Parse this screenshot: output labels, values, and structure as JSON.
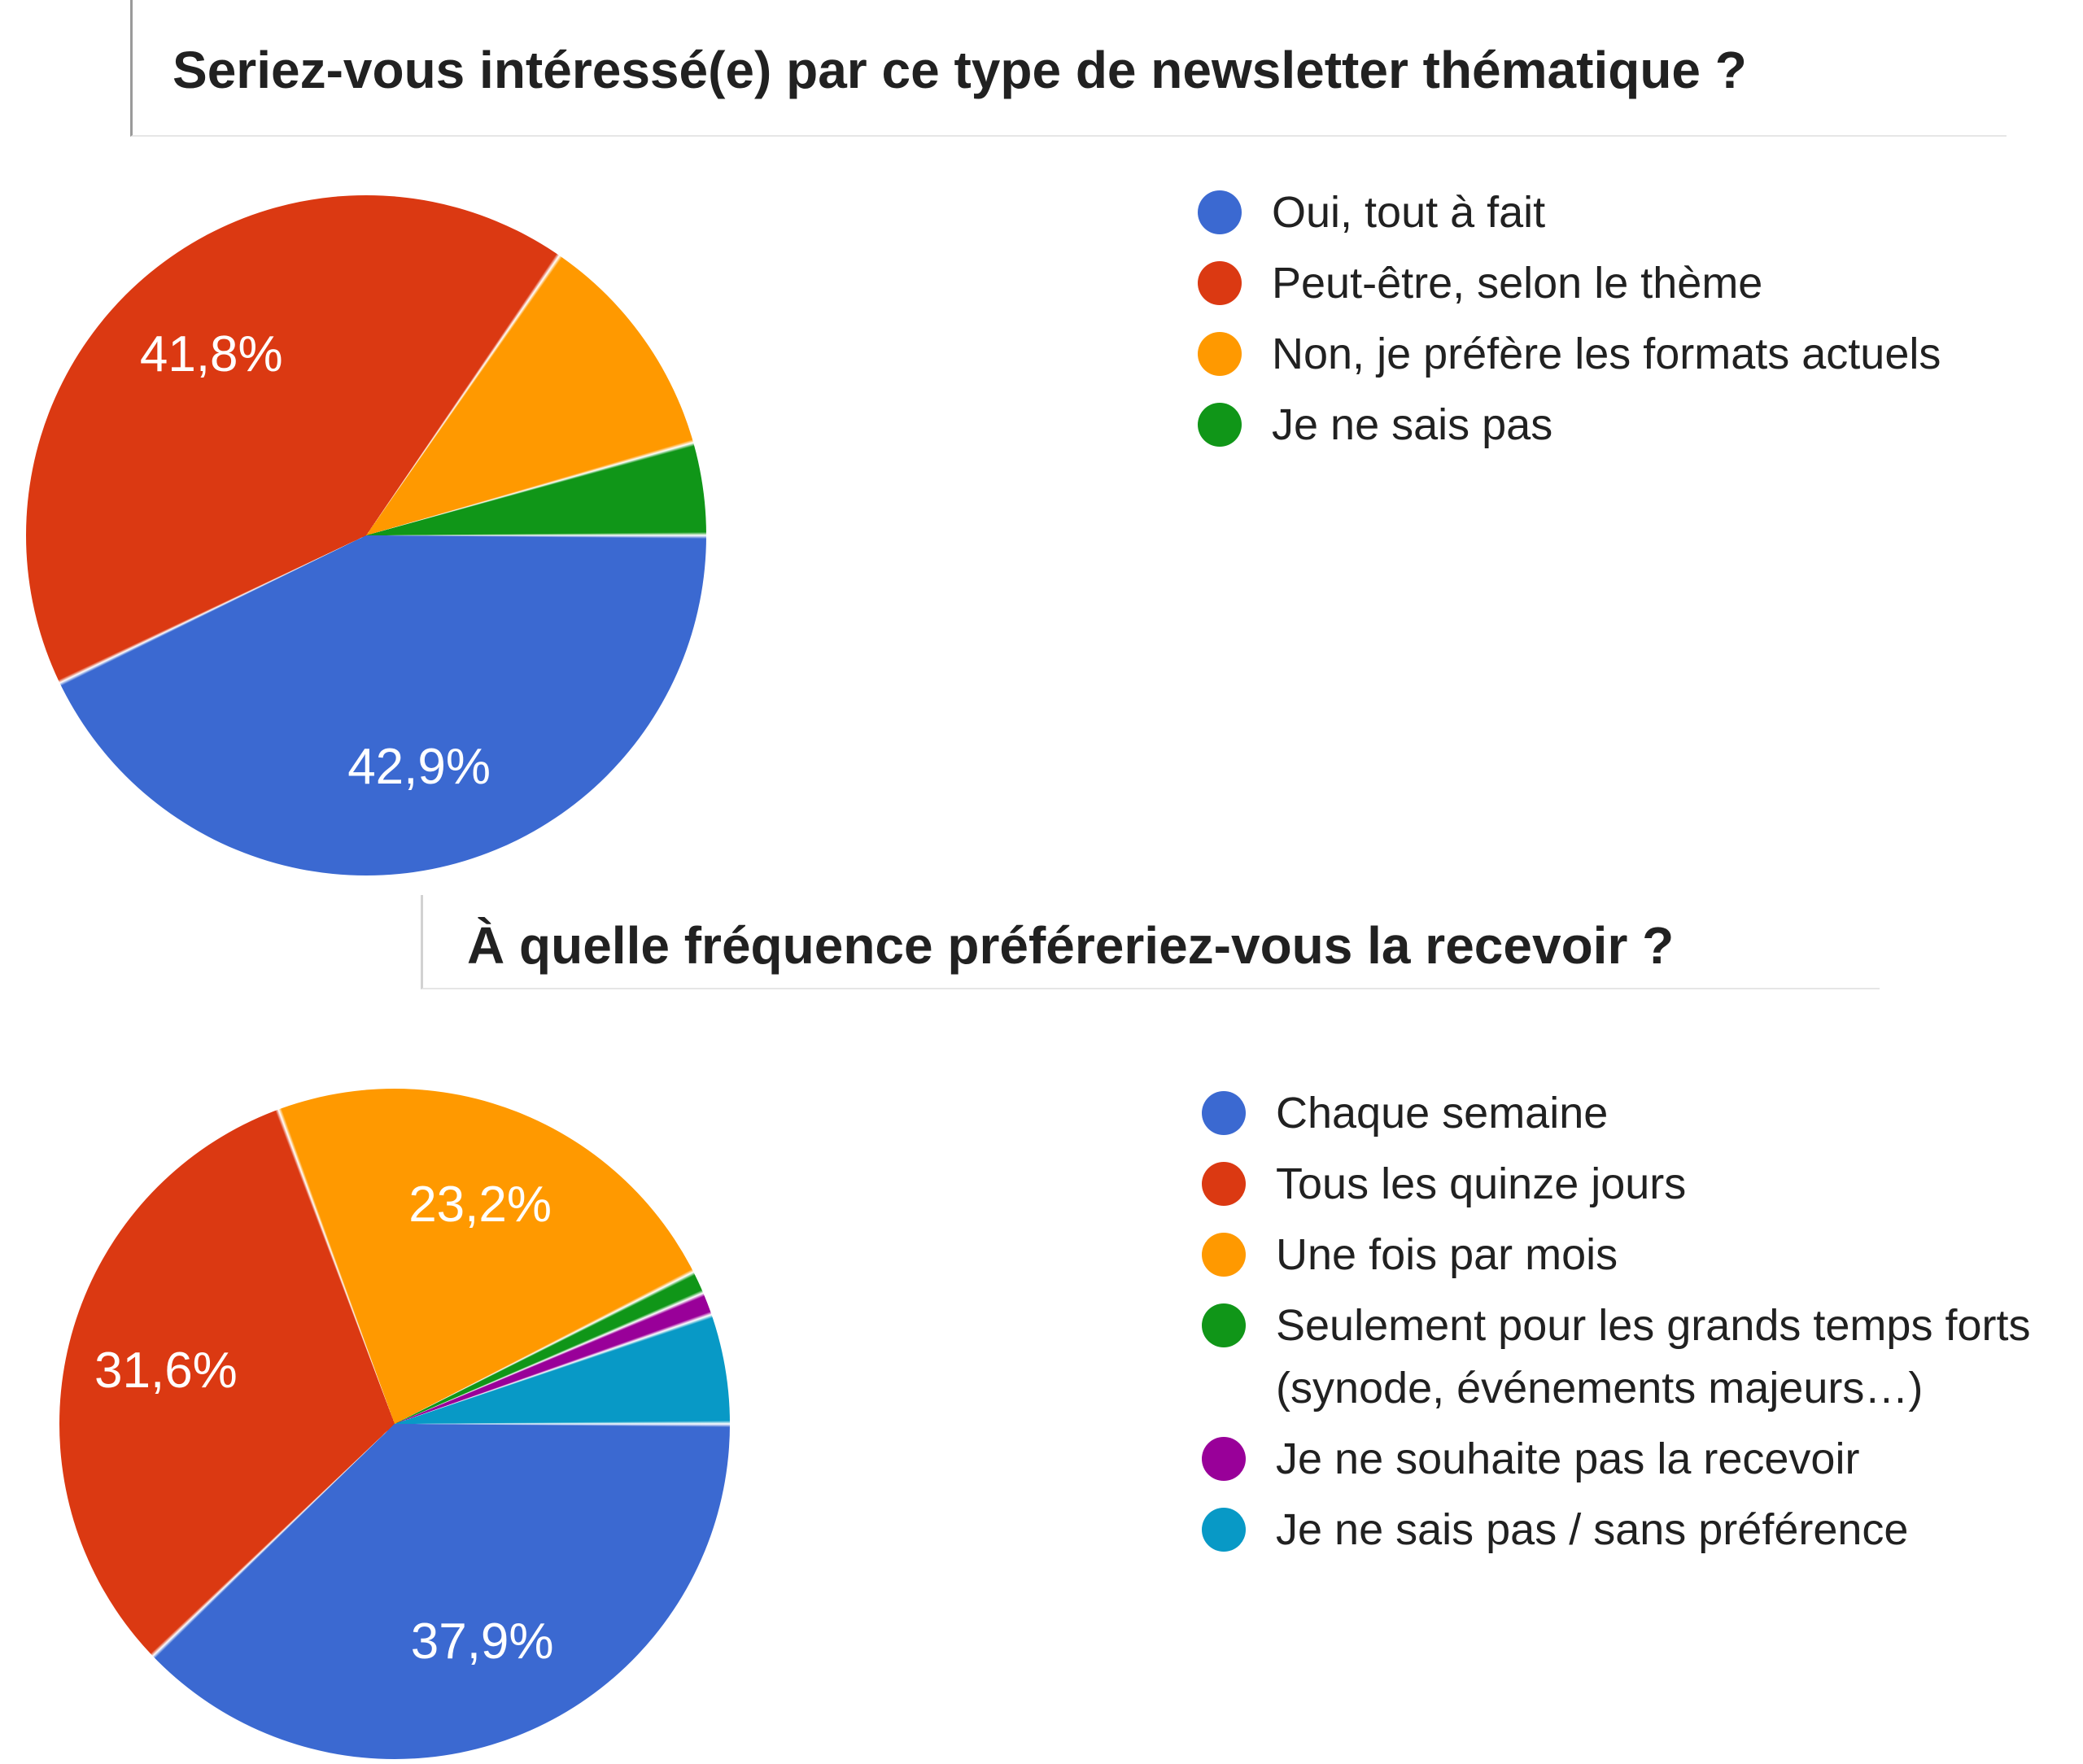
{
  "page": {
    "background": "#ffffff",
    "title_text_color": "#212121",
    "pie_label_text_color": "#ffffff",
    "card_left_border_color": "#9a9a9a",
    "card_bottom_border_color": "#e6e6e6"
  },
  "chart_data": [
    {
      "type": "pie",
      "title": "Seriez-vous intéressé(e) par ce type de newsletter thématique ?",
      "legend_position": "right",
      "labels_shown_on_large_slices_only": true,
      "slices": [
        {
          "legend": "Oui, tout à fait",
          "value_pct": 42.9,
          "label": "42,9%",
          "color": "#3B69D1",
          "color_name": "blue"
        },
        {
          "legend": "Peut-être, selon le thème",
          "value_pct": 41.8,
          "label": "41,8%",
          "color": "#DB3912",
          "color_name": "red"
        },
        {
          "legend": "Non, je préfère les formats actuels",
          "value_pct": 11.0,
          "label": "",
          "color": "#FF9900",
          "color_name": "orange"
        },
        {
          "legend": "Je ne sais pas",
          "value_pct": 4.4,
          "label": "",
          "color": "#109618",
          "color_name": "green"
        }
      ]
    },
    {
      "type": "pie",
      "title": "À quelle fréquence préféreriez-vous la recevoir ?",
      "legend_position": "right",
      "labels_shown_on_large_slices_only": true,
      "slices": [
        {
          "legend": "Chaque semaine",
          "value_pct": 37.9,
          "label": "37,9%",
          "color": "#3B69D1",
          "color_name": "blue"
        },
        {
          "legend": "Tous les quinze jours",
          "value_pct": 31.6,
          "label": "31,6%",
          "color": "#DB3912",
          "color_name": "red"
        },
        {
          "legend": "Une fois par mois",
          "value_pct": 23.2,
          "label": "23,2%",
          "color": "#FF9900",
          "color_name": "orange"
        },
        {
          "legend": "Seulement pour les grands temps forts",
          "legend_line2": "(synode, événements majeurs…)",
          "value_pct": 1.1,
          "label": "",
          "color": "#109618",
          "color_name": "green"
        },
        {
          "legend": "Je ne souhaite pas la recevoir",
          "value_pct": 1.1,
          "label": "",
          "color": "#990099",
          "color_name": "purple"
        },
        {
          "legend": "Je ne sais pas / sans préférence",
          "value_pct": 5.3,
          "label": "",
          "color": "#0899C6",
          "color_name": "teal"
        }
      ]
    }
  ]
}
